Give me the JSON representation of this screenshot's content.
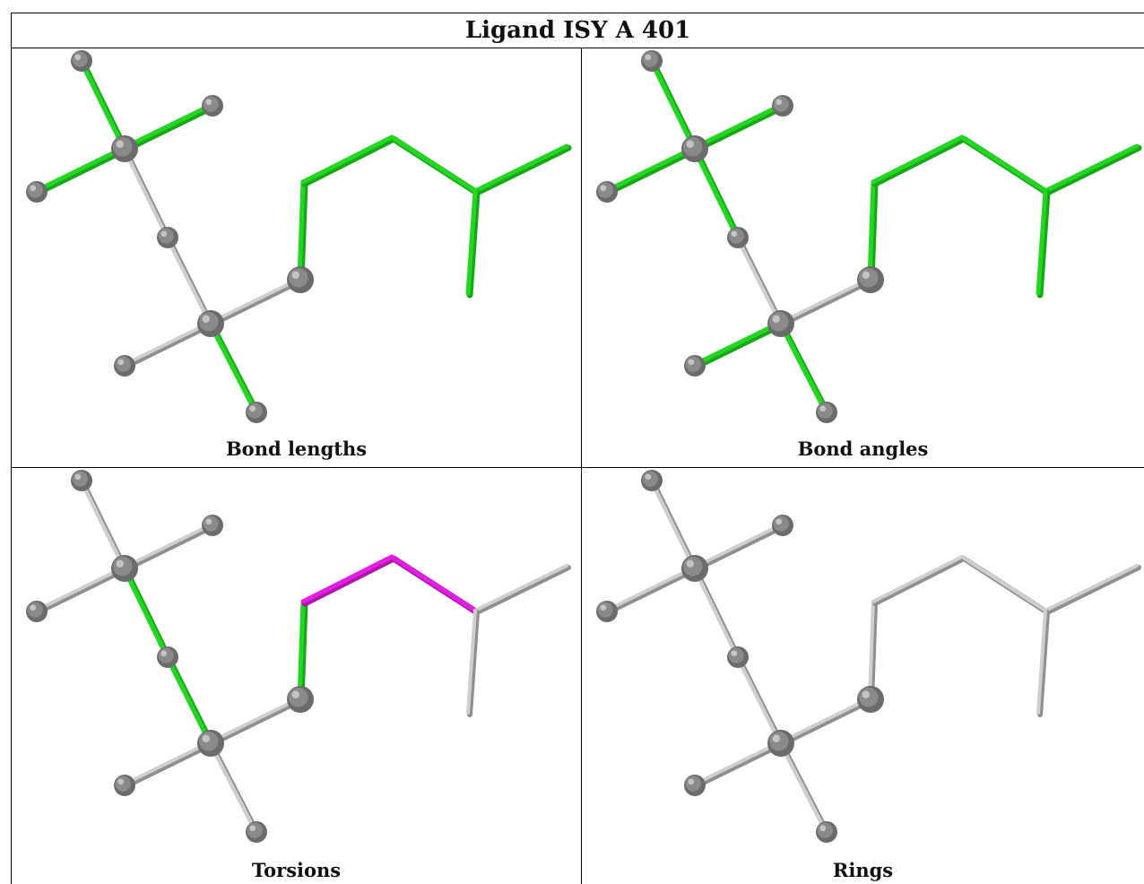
{
  "title": "Ligand ISY A 401",
  "panels": [
    {
      "caption": "Bond lengths",
      "bonds": {
        "b1": "green",
        "b2": "green",
        "b3": "green",
        "b4": "gray",
        "b5": "gray",
        "b6": "gray",
        "b7": "gray",
        "b8": "green",
        "b9": "green",
        "b10": "green",
        "b11": "green",
        "b12": "green",
        "b13": "green",
        "b14": "green"
      }
    },
    {
      "caption": "Bond angles",
      "bonds": {
        "b1": "green",
        "b2": "green",
        "b3": "green",
        "b4": "green",
        "b5": "gray",
        "b6": "gray",
        "b7": "green",
        "b8": "green",
        "b9": "green",
        "b10": "green",
        "b11": "green",
        "b12": "green",
        "b13": "green",
        "b14": "green"
      }
    },
    {
      "caption": "Torsions",
      "bonds": {
        "b1": "gray",
        "b2": "gray",
        "b3": "gray",
        "b4": "green",
        "b5": "green",
        "b6": "gray",
        "b7": "gray",
        "b8": "gray",
        "b9": "gray",
        "b10": "green",
        "b11": "magenta",
        "b12": "magenta",
        "b13": "gray",
        "b14": "gray"
      }
    },
    {
      "caption": "Rings",
      "bonds": {
        "b1": "gray",
        "b2": "gray",
        "b3": "gray",
        "b4": "gray",
        "b5": "gray",
        "b6": "gray",
        "b7": "gray",
        "b8": "gray",
        "b9": "gray",
        "b10": "gray",
        "b11": "gray",
        "b12": "gray",
        "b13": "gray",
        "b14": "gray"
      }
    }
  ],
  "colors": {
    "green": "#22d622",
    "magenta": "#e21ee2",
    "gray": "#cfcfcf",
    "atom": "#7a7a7a"
  }
}
